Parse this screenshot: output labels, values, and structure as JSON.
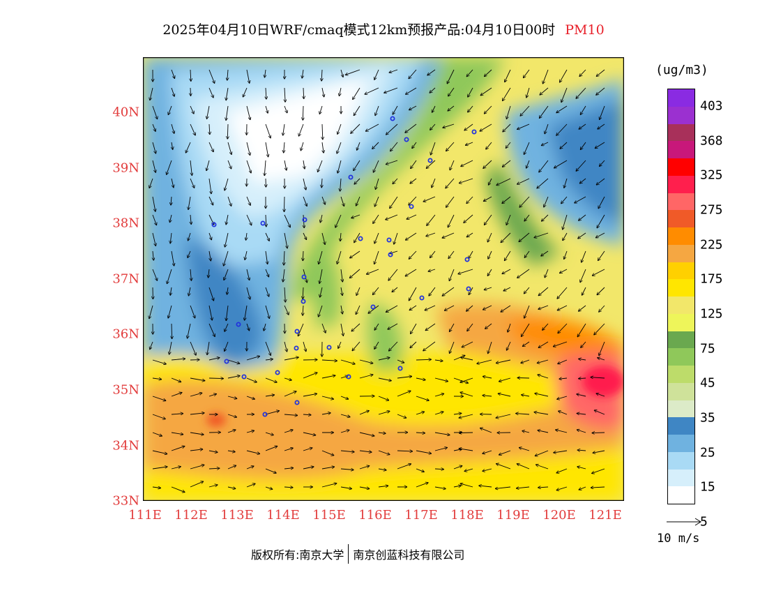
{
  "title": {
    "main": "2025年04月10日WRF/cmaq模式12km预报产品:04月10日00时",
    "variable": "PM10",
    "variable_color": "#e8202a"
  },
  "map": {
    "lat_labels": [
      "40N",
      "39N",
      "38N",
      "37N",
      "36N",
      "35N",
      "34N",
      "33N"
    ],
    "lon_labels": [
      "111E",
      "112E",
      "113E",
      "114E",
      "115E",
      "116E",
      "117E",
      "118E",
      "119E",
      "120E",
      "121E"
    ],
    "label_color": "#e23b3b"
  },
  "legend": {
    "unit": "(ug/m3)",
    "colors": [
      "#8a2be2",
      "#9b30d0",
      "#a8305a",
      "#c8187a",
      "#ff0000",
      "#ff1f4d",
      "#ff6666",
      "#f05a28",
      "#ff8c00",
      "#f5a742",
      "#ffd000",
      "#ffe600",
      "#f2e76a",
      "#eef55a",
      "#6aa84f",
      "#8fc85a",
      "#bddc6a",
      "#cfe29a",
      "#dcebc8",
      "#3f86c4",
      "#6fb2e0",
      "#a9daf5",
      "#d6effb",
      "#ffffff"
    ],
    "labels": [
      "403",
      "368",
      "325",
      "275",
      "225",
      "175",
      "125",
      "75",
      "45",
      "35",
      "25",
      "15",
      "5"
    ]
  },
  "ref_vector": {
    "label": "10 m/s"
  },
  "footer": {
    "left": "版权所有:南京大学",
    "right": "南京创蓝科技有限公司"
  }
}
